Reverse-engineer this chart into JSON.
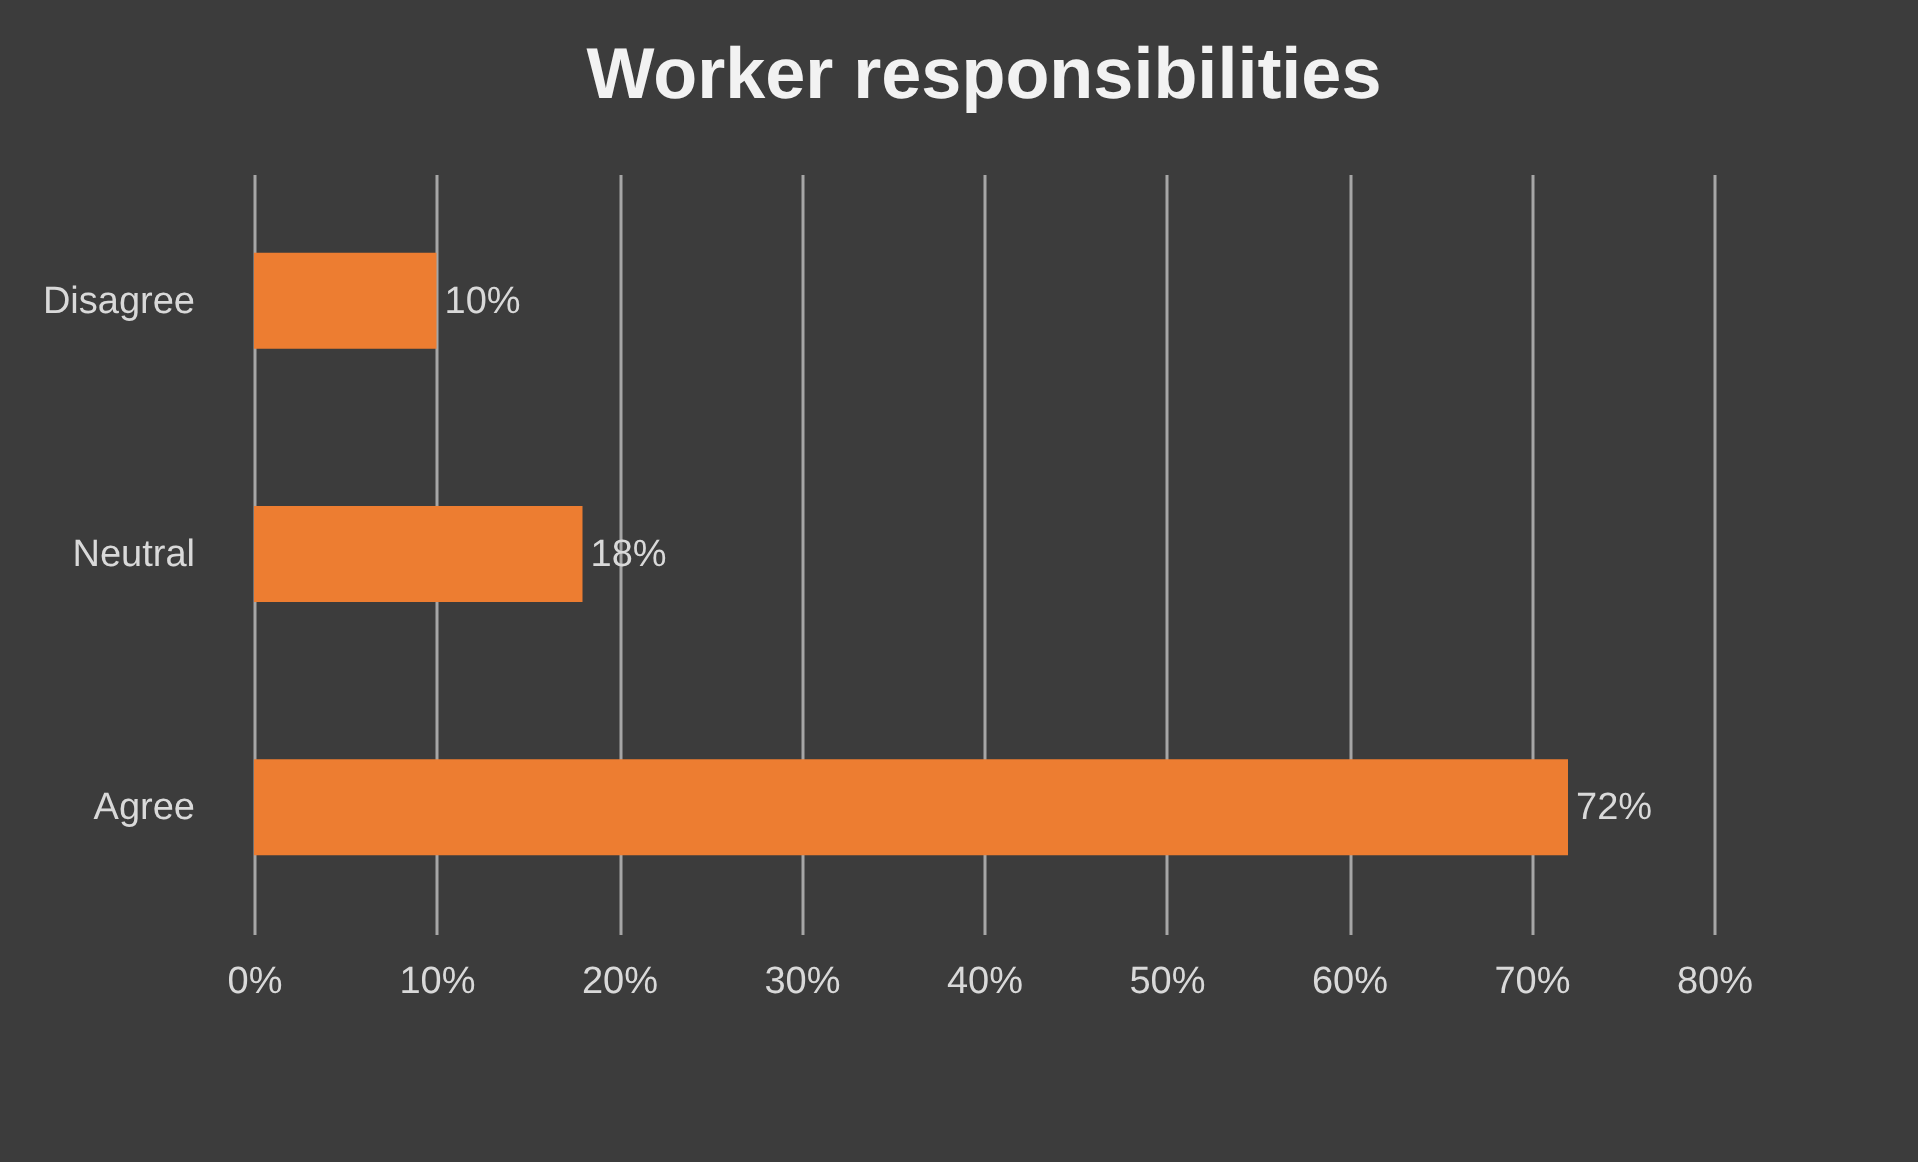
{
  "chart_data": {
    "type": "bar",
    "title": "Worker responsibilities",
    "orientation": "horizontal",
    "categories": [
      "Disagree",
      "Neutral",
      "Agree"
    ],
    "values": [
      10,
      18,
      72
    ],
    "color": "#ed7d31",
    "value_labels": [
      "10%",
      "18%",
      "72%"
    ],
    "xlim": [
      0,
      80
    ],
    "xticks": [
      {
        "value": 0,
        "label": "0%"
      },
      {
        "value": 10,
        "label": "10%"
      },
      {
        "value": 20,
        "label": "20%"
      },
      {
        "value": 30,
        "label": "30%"
      },
      {
        "value": 40,
        "label": "40%"
      },
      {
        "value": 50,
        "label": "50%"
      },
      {
        "value": 60,
        "label": "60%"
      },
      {
        "value": 70,
        "label": "70%"
      },
      {
        "value": 80,
        "label": "80%"
      }
    ],
    "grid": "x"
  }
}
